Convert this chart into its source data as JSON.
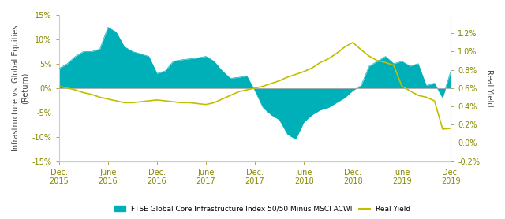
{
  "ylabel_left": "Infrastructure vs. Global Equities\n(Return)",
  "ylabel_right": "Real Yield",
  "fill_color": "#00B0B9",
  "line_color": "#BFBF00",
  "legend_fill_label": "FTSE Global Core Infrastructure Index 50/50 Minus MSCI ACWI",
  "legend_line_label": "Real Yield",
  "x_tick_positions": [
    0,
    6,
    12,
    18,
    24,
    30,
    36,
    42,
    48
  ],
  "x_tick_labels": [
    "Dec.\n2015",
    "June\n2016",
    "Dec.\n2016",
    "June\n2017",
    "Dec.\n2017",
    "June\n2018",
    "Dec.\n2018",
    "June\n2019",
    "Dec.\n2019"
  ],
  "ylim_left": [
    -15,
    15
  ],
  "yticks_left": [
    -15,
    -10,
    -5,
    0,
    5,
    10,
    15
  ],
  "ylim_right": [
    -0.002,
    0.014
  ],
  "yticks_right": [
    -0.002,
    0.0,
    0.002,
    0.004,
    0.006,
    0.008,
    0.01,
    0.012
  ],
  "infra": [
    4.0,
    5.0,
    6.5,
    7.5,
    7.5,
    8.0,
    12.5,
    11.5,
    8.5,
    7.5,
    7.0,
    6.5,
    3.0,
    3.5,
    5.5,
    5.8,
    6.0,
    6.2,
    6.5,
    5.5,
    3.5,
    2.0,
    2.2,
    2.5,
    -0.5,
    -4.0,
    -5.5,
    -6.5,
    -9.5,
    -10.5,
    -7.0,
    -5.5,
    -4.5,
    -4.0,
    -3.0,
    -2.0,
    -0.5,
    0.5,
    4.5,
    5.5,
    6.5,
    5.0,
    5.5,
    4.5,
    5.0,
    0.5,
    1.0,
    -2.0,
    3.5
  ],
  "real_yield": [
    0.0062,
    0.006,
    0.0058,
    0.0055,
    0.0053,
    0.005,
    0.0048,
    0.0046,
    0.0044,
    0.0044,
    0.0045,
    0.0046,
    0.0047,
    0.0046,
    0.0045,
    0.0044,
    0.0044,
    0.0043,
    0.0042,
    0.0044,
    0.0048,
    0.0052,
    0.0056,
    0.0058,
    0.006,
    0.0062,
    0.0065,
    0.0068,
    0.0072,
    0.0075,
    0.0078,
    0.0082,
    0.0088,
    0.0092,
    0.0098,
    0.0105,
    0.011,
    0.0102,
    0.0095,
    0.009,
    0.0088,
    0.0085,
    0.0062,
    0.0057,
    0.0052,
    0.005,
    0.0046,
    0.0015,
    0.0016
  ]
}
